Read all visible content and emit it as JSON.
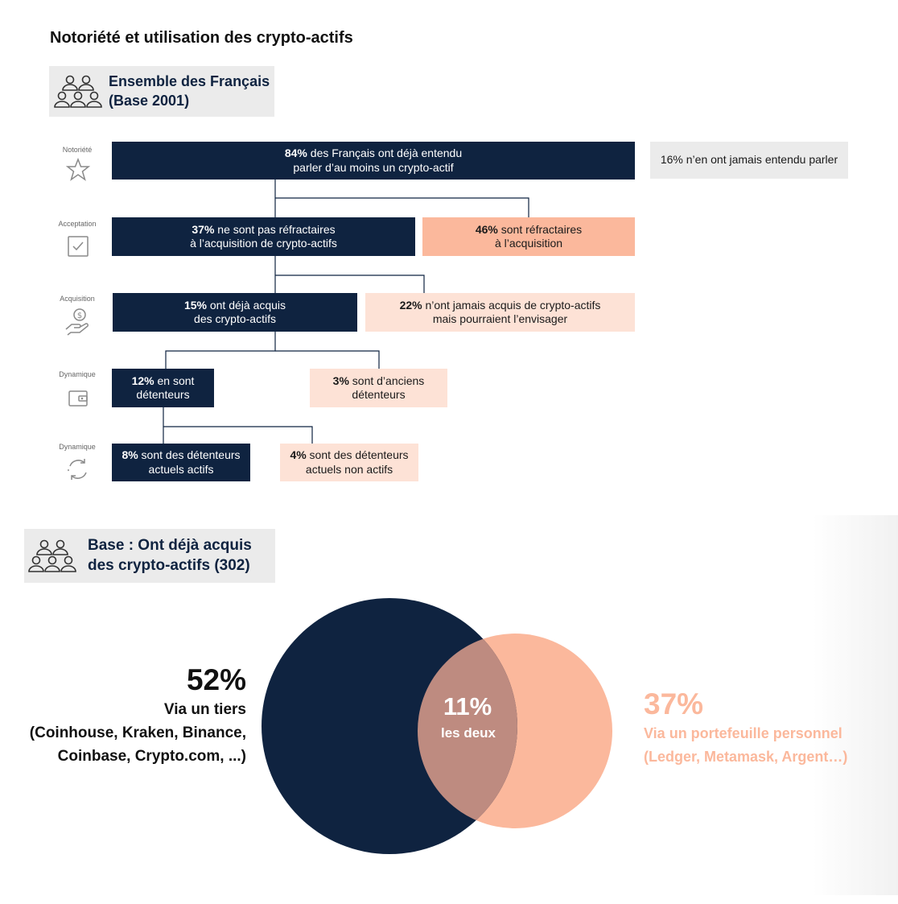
{
  "title": "Notoriété et utilisation des crypto-actifs",
  "base_all": {
    "line1": "Ensemble des Français",
    "line2": "(Base 2001)"
  },
  "rows": [
    {
      "label": "Notoriété",
      "icon": "star-icon"
    },
    {
      "label": "Acceptation",
      "icon": "checkbox-icon"
    },
    {
      "label": "Acquisition",
      "icon": "hand-coin-icon"
    },
    {
      "label": "Dynamique",
      "icon": "wallet-icon"
    },
    {
      "label": "Dynamique",
      "icon": "cycle-arrows-icon"
    }
  ],
  "boxes": {
    "heard": {
      "pct": "84%",
      "line1": " des Français ont déjà entendu",
      "line2": "parler d’au moins un crypto-actif"
    },
    "never_heard": {
      "text": "16% n’en ont jamais entendu parler"
    },
    "not_refractory": {
      "pct": "37%",
      "line1": " ne sont pas réfractaires",
      "line2": "à l’acquisition de crypto-actifs"
    },
    "refractory": {
      "pct": "46%",
      "line1": " sont réfractaires",
      "line2": "à l’acquisition"
    },
    "acquired": {
      "pct": "15%",
      "line1": " ont déjà acquis",
      "line2": "des crypto-actifs"
    },
    "never_acquired": {
      "pct": "22%",
      "line1": " n’ont jamais acquis de crypto-actifs",
      "line2": "mais pourraient l’envisager"
    },
    "holders": {
      "pct": "12%",
      "line1": " en sont",
      "line2": "détenteurs"
    },
    "former": {
      "pct": "3%",
      "line1": " sont d’anciens",
      "line2": "détenteurs"
    },
    "active": {
      "pct": "8%",
      "line1": " sont des détenteurs",
      "line2": "actuels actifs"
    },
    "inactive": {
      "pct": "4%",
      "line1": " sont des détenteurs",
      "line2": "actuels non actifs"
    }
  },
  "base_acquired": {
    "line1": "Base : Ont déjà acquis",
    "line2": "des crypto-actifs (302)"
  },
  "venn": {
    "left": {
      "pct": "52%",
      "line1": "Via un tiers",
      "line2": "(Coinhouse, Kraken, Binance,",
      "line3": "Coinbase, Crypto.com, ...)",
      "color": "#0f2340"
    },
    "right": {
      "pct": "37%",
      "line1": "Via un portefeuille personnel",
      "line2": "(Ledger, Metamask, Argent…)",
      "color": "#fbb89c"
    },
    "overlap": {
      "pct": "11%",
      "label": "les deux",
      "color": "#be8b80"
    }
  },
  "colors": {
    "navy": "#0f2340",
    "salmon": "#fbb89c",
    "light_salmon": "#fde2d6",
    "grey": "#ebebeb"
  }
}
